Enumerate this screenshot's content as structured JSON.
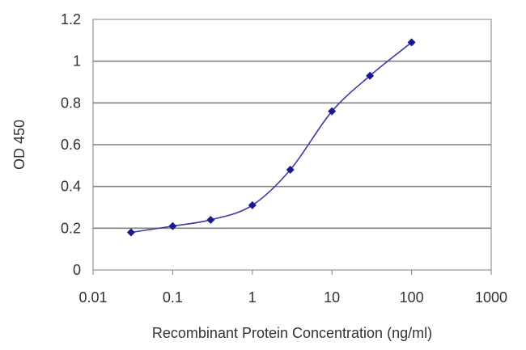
{
  "chart_data": {
    "type": "line",
    "title": "",
    "xlabel": "Recombinant Protein Concentration (ng/ml)",
    "ylabel": "OD 450",
    "x_scale": "log",
    "xlim": [
      0.01,
      1000
    ],
    "ylim": [
      0,
      1.2
    ],
    "x_ticks": [
      0.01,
      0.1,
      1,
      10,
      100,
      1000
    ],
    "x_tick_labels": [
      "0.01",
      "0.1",
      "1",
      "10",
      "100",
      "1000"
    ],
    "y_ticks": [
      0,
      0.2,
      0.4,
      0.6,
      0.8,
      1,
      1.2
    ],
    "y_tick_labels": [
      "0",
      "0.2",
      "0.4",
      "0.6",
      "0.8",
      "1",
      "1.2"
    ],
    "grid": "horizontal",
    "series": [
      {
        "x": [
          0.03,
          0.1,
          0.3,
          1,
          3,
          10,
          30,
          100
        ],
        "y": [
          0.18,
          0.21,
          0.24,
          0.31,
          0.48,
          0.76,
          0.93,
          1.09
        ]
      }
    ],
    "colors": {
      "line": "#3a3aa8",
      "marker": "#1a1a8c",
      "grid": "#808080",
      "frame": "#808080"
    }
  }
}
